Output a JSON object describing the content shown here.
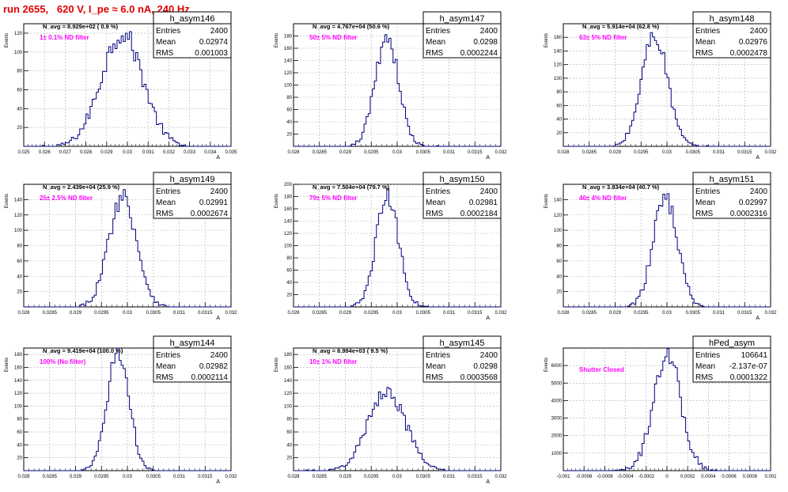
{
  "header": {
    "run_title": "run 2655,   620 V, I_pe ≈ 6.0 nA, 240 Hz"
  },
  "colors": {
    "hist_line": "#000080",
    "filter_text": "#ff00ff",
    "title_text": "#e00000",
    "grid": "#b0b0b0",
    "frame": "#000000"
  },
  "chart_data": [
    {
      "type": "histogram",
      "name": "h_asym146",
      "navg": "N_avg = 8.929e+02 ( 0.9 %)",
      "filter": "1± 0.1% ND filter",
      "stats": {
        "entries_label": "Entries",
        "entries": "2400",
        "mean_label": "Mean",
        "mean": "0.02974",
        "rms_label": "RMS",
        "rms": "0.001003"
      },
      "ylabel": "Events",
      "xlabel": "A",
      "xlim": [
        0.025,
        0.035
      ],
      "ylim": [
        0,
        130
      ],
      "xticks": [
        "0.025",
        "0.026",
        "0.027",
        "0.028",
        "0.029",
        "0.03",
        "0.031",
        "0.032",
        "0.033",
        "0.034",
        "0.035"
      ],
      "yticks": [
        "20",
        "40",
        "60",
        "80",
        "100",
        "120"
      ],
      "mean": 0.02974,
      "rms": 0.001003,
      "peak": 120,
      "bins": 100
    },
    {
      "type": "histogram",
      "name": "h_asym147",
      "navg": "N_avg = 4.767e+04 (50.6 %)",
      "filter": "50± 5% ND filter",
      "stats": {
        "entries_label": "Entries",
        "entries": "2400",
        "mean_label": "Mean",
        "mean": "0.0298",
        "rms_label": "RMS",
        "rms": "0.0002244"
      },
      "ylabel": "Events",
      "xlabel": "A",
      "xlim": [
        0.028,
        0.032
      ],
      "ylim": [
        0,
        200
      ],
      "xticks": [
        "0.028",
        "0.0285",
        "0.029",
        "0.0295",
        "0.03",
        "0.0305",
        "0.031",
        "0.0315",
        "0.032"
      ],
      "yticks": [
        "20",
        "40",
        "60",
        "80",
        "100",
        "120",
        "140",
        "160",
        "180"
      ],
      "mean": 0.0298,
      "rms": 0.0002244,
      "peak": 180,
      "bins": 100
    },
    {
      "type": "histogram",
      "name": "h_asym148",
      "navg": "N_avg = 5.914e+04 (62.8 %)",
      "filter": "63± 5% ND filter",
      "stats": {
        "entries_label": "Entries",
        "entries": "2400",
        "mean_label": "Mean",
        "mean": "0.02976",
        "rms_label": "RMS",
        "rms": "0.0002478"
      },
      "ylabel": "Events",
      "xlabel": "A",
      "xlim": [
        0.028,
        0.032
      ],
      "ylim": [
        0,
        180
      ],
      "xticks": [
        "0.028",
        "0.0285",
        "0.029",
        "0.0295",
        "0.03",
        "0.0305",
        "0.031",
        "0.0315",
        "0.032"
      ],
      "yticks": [
        "20",
        "40",
        "60",
        "80",
        "100",
        "120",
        "140",
        "160"
      ],
      "mean": 0.02976,
      "rms": 0.0002478,
      "peak": 165,
      "bins": 100
    },
    {
      "type": "histogram",
      "name": "h_asym149",
      "navg": "N_avg = 2.439e+04 (25.9 %)",
      "filter": "25± 2.5% ND filter",
      "stats": {
        "entries_label": "Entries",
        "entries": "2400",
        "mean_label": "Mean",
        "mean": "0.02991",
        "rms_label": "RMS",
        "rms": "0.0002674"
      },
      "ylabel": "Events",
      "xlabel": "A",
      "xlim": [
        0.028,
        0.032
      ],
      "ylim": [
        0,
        160
      ],
      "xticks": [
        "0.028",
        "0.0285",
        "0.029",
        "0.0295",
        "0.03",
        "0.0305",
        "0.031",
        "0.0315",
        "0.032"
      ],
      "yticks": [
        "20",
        "40",
        "60",
        "80",
        "100",
        "120",
        "140"
      ],
      "mean": 0.02991,
      "rms": 0.0002674,
      "peak": 145,
      "bins": 100
    },
    {
      "type": "histogram",
      "name": "h_asym150",
      "navg": "N_avg = 7.504e+04 (79.7 %)",
      "filter": "79± 5% ND filter",
      "stats": {
        "entries_label": "Entries",
        "entries": "2400",
        "mean_label": "Mean",
        "mean": "0.02981",
        "rms_label": "RMS",
        "rms": "0.0002184"
      },
      "ylabel": "Events",
      "xlabel": "A",
      "xlim": [
        0.028,
        0.032
      ],
      "ylim": [
        0,
        200
      ],
      "xticks": [
        "0.028",
        "0.0285",
        "0.029",
        "0.0295",
        "0.03",
        "0.0305",
        "0.031",
        "0.0315",
        "0.032"
      ],
      "yticks": [
        "20",
        "40",
        "60",
        "80",
        "100",
        "120",
        "140",
        "160",
        "180",
        "200"
      ],
      "mean": 0.02981,
      "rms": 0.0002184,
      "peak": 180,
      "bins": 100
    },
    {
      "type": "histogram",
      "name": "h_asym151",
      "navg": "N_avg = 3.834e+04 (40.7 %)",
      "filter": "40± 4% ND filter",
      "stats": {
        "entries_label": "Entries",
        "entries": "2400",
        "mean_label": "Mean",
        "mean": "0.02997",
        "rms_label": "RMS",
        "rms": "0.0002316"
      },
      "ylabel": "Events",
      "xlabel": "A",
      "xlim": [
        0.028,
        0.032
      ],
      "ylim": [
        0,
        160
      ],
      "xticks": [
        "0.028",
        "0.0285",
        "0.029",
        "0.0295",
        "0.03",
        "0.0305",
        "0.031",
        "0.0315",
        "0.032"
      ],
      "yticks": [
        "20",
        "40",
        "60",
        "80",
        "100",
        "120",
        "140"
      ],
      "mean": 0.02997,
      "rms": 0.0002316,
      "peak": 145,
      "bins": 100
    },
    {
      "type": "histogram",
      "name": "h_asym144",
      "navg": "N_avg = 9.419e+04 (100.0 %)",
      "filter": "100% (No filter)",
      "stats": {
        "entries_label": "Entries",
        "entries": "2400",
        "mean_label": "Mean",
        "mean": "0.02982",
        "rms_label": "RMS",
        "rms": "0.0002114"
      },
      "ylabel": "Events",
      "xlabel": "A",
      "xlim": [
        0.028,
        0.032
      ],
      "ylim": [
        0,
        190
      ],
      "xticks": [
        "0.028",
        "0.0285",
        "0.029",
        "0.0295",
        "0.03",
        "0.0305",
        "0.031",
        "0.0315",
        "0.032"
      ],
      "yticks": [
        "20",
        "40",
        "60",
        "80",
        "100",
        "120",
        "140",
        "160",
        "180"
      ],
      "mean": 0.02982,
      "rms": 0.0002114,
      "peak": 185,
      "bins": 100
    },
    {
      "type": "histogram",
      "name": "h_asym145",
      "navg": "N_avg = 8.994e+03 ( 9.5 %)",
      "filter": "10± 1% ND filter",
      "stats": {
        "entries_label": "Entries",
        "entries": "2400",
        "mean_label": "Mean",
        "mean": "0.0298",
        "rms_label": "RMS",
        "rms": "0.0003568"
      },
      "ylabel": "Events",
      "xlabel": "A",
      "xlim": [
        0.028,
        0.032
      ],
      "ylim": [
        0,
        190
      ],
      "xticks": [
        "0.028",
        "0.0285",
        "0.029",
        "0.0295",
        "0.03",
        "0.0305",
        "0.031",
        "0.0315",
        "0.032"
      ],
      "yticks": [
        "20",
        "40",
        "60",
        "80",
        "100",
        "120",
        "140",
        "160",
        "180"
      ],
      "mean": 0.0298,
      "rms": 0.0003568,
      "peak": 125,
      "bins": 100
    },
    {
      "type": "histogram",
      "name": "hPed_asym",
      "navg": "",
      "filter": "Shutter Closed",
      "stats": {
        "entries_label": "Entries",
        "entries": "106641",
        "mean_label": "Mean",
        "mean": "-2.137e-07",
        "rms_label": "RMS",
        "rms": "0.0001322"
      },
      "ylabel": "Events",
      "xlabel": "",
      "xlim": [
        -0.001,
        0.001
      ],
      "ylim": [
        0,
        7000
      ],
      "xticks": [
        "-0.001",
        "-0.0008",
        "-0.0006",
        "-0.0004",
        "-0.0002",
        "0",
        "0.0002",
        "0.0004",
        "0.0006",
        "0.0008",
        "0.001"
      ],
      "yticks": [
        "1000",
        "2000",
        "3000",
        "4000",
        "5000",
        "6000"
      ],
      "mean": -2.137e-07,
      "rms": 0.0001322,
      "peak": 6700,
      "bins": 100
    }
  ]
}
